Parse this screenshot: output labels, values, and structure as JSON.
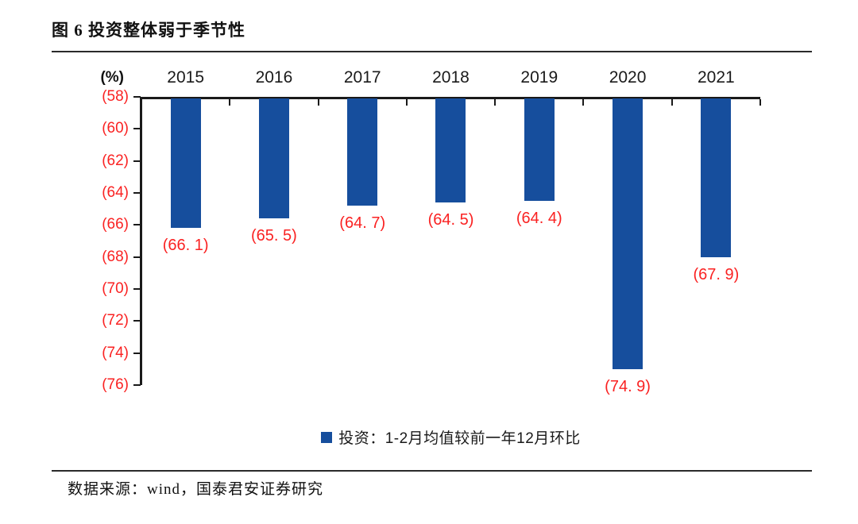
{
  "header": {
    "title": "图 6 投资整体弱于季节性"
  },
  "chart_data": {
    "type": "bar",
    "title": "图 6 投资整体弱于季节性",
    "y_unit_label": "(%)",
    "categories": [
      "2015",
      "2016",
      "2017",
      "2018",
      "2019",
      "2020",
      "2021"
    ],
    "values": [
      -66.1,
      -65.5,
      -64.7,
      -64.5,
      -64.4,
      -74.9,
      -67.9
    ],
    "value_labels": [
      "(66. 1)",
      "(65. 5)",
      "(64. 7)",
      "(64. 5)",
      "(64. 4)",
      "(74. 9)",
      "(67. 9)"
    ],
    "y_tick_labels": [
      "(58)",
      "(60)",
      "(62)",
      "(64)",
      "(66)",
      "(68)",
      "(70)",
      "(72)",
      "(74)",
      "(76)"
    ],
    "y_axis_range_abs": [
      58,
      76
    ],
    "negative_format": "parentheses",
    "grid": false,
    "bars_hang_from_top_axis": true,
    "legend_position": "bottom",
    "legend_label": "投资：1-2月均值较前一年12月环比",
    "colors": {
      "bar": "#164E9D",
      "value_label": "#FA2222",
      "y_tick_label": "#FA2222",
      "category_label": "#1A1A1A",
      "axis": "#1A1A1A"
    }
  },
  "footer": {
    "source": "数据来源：wind，国泰君安证券研究"
  }
}
